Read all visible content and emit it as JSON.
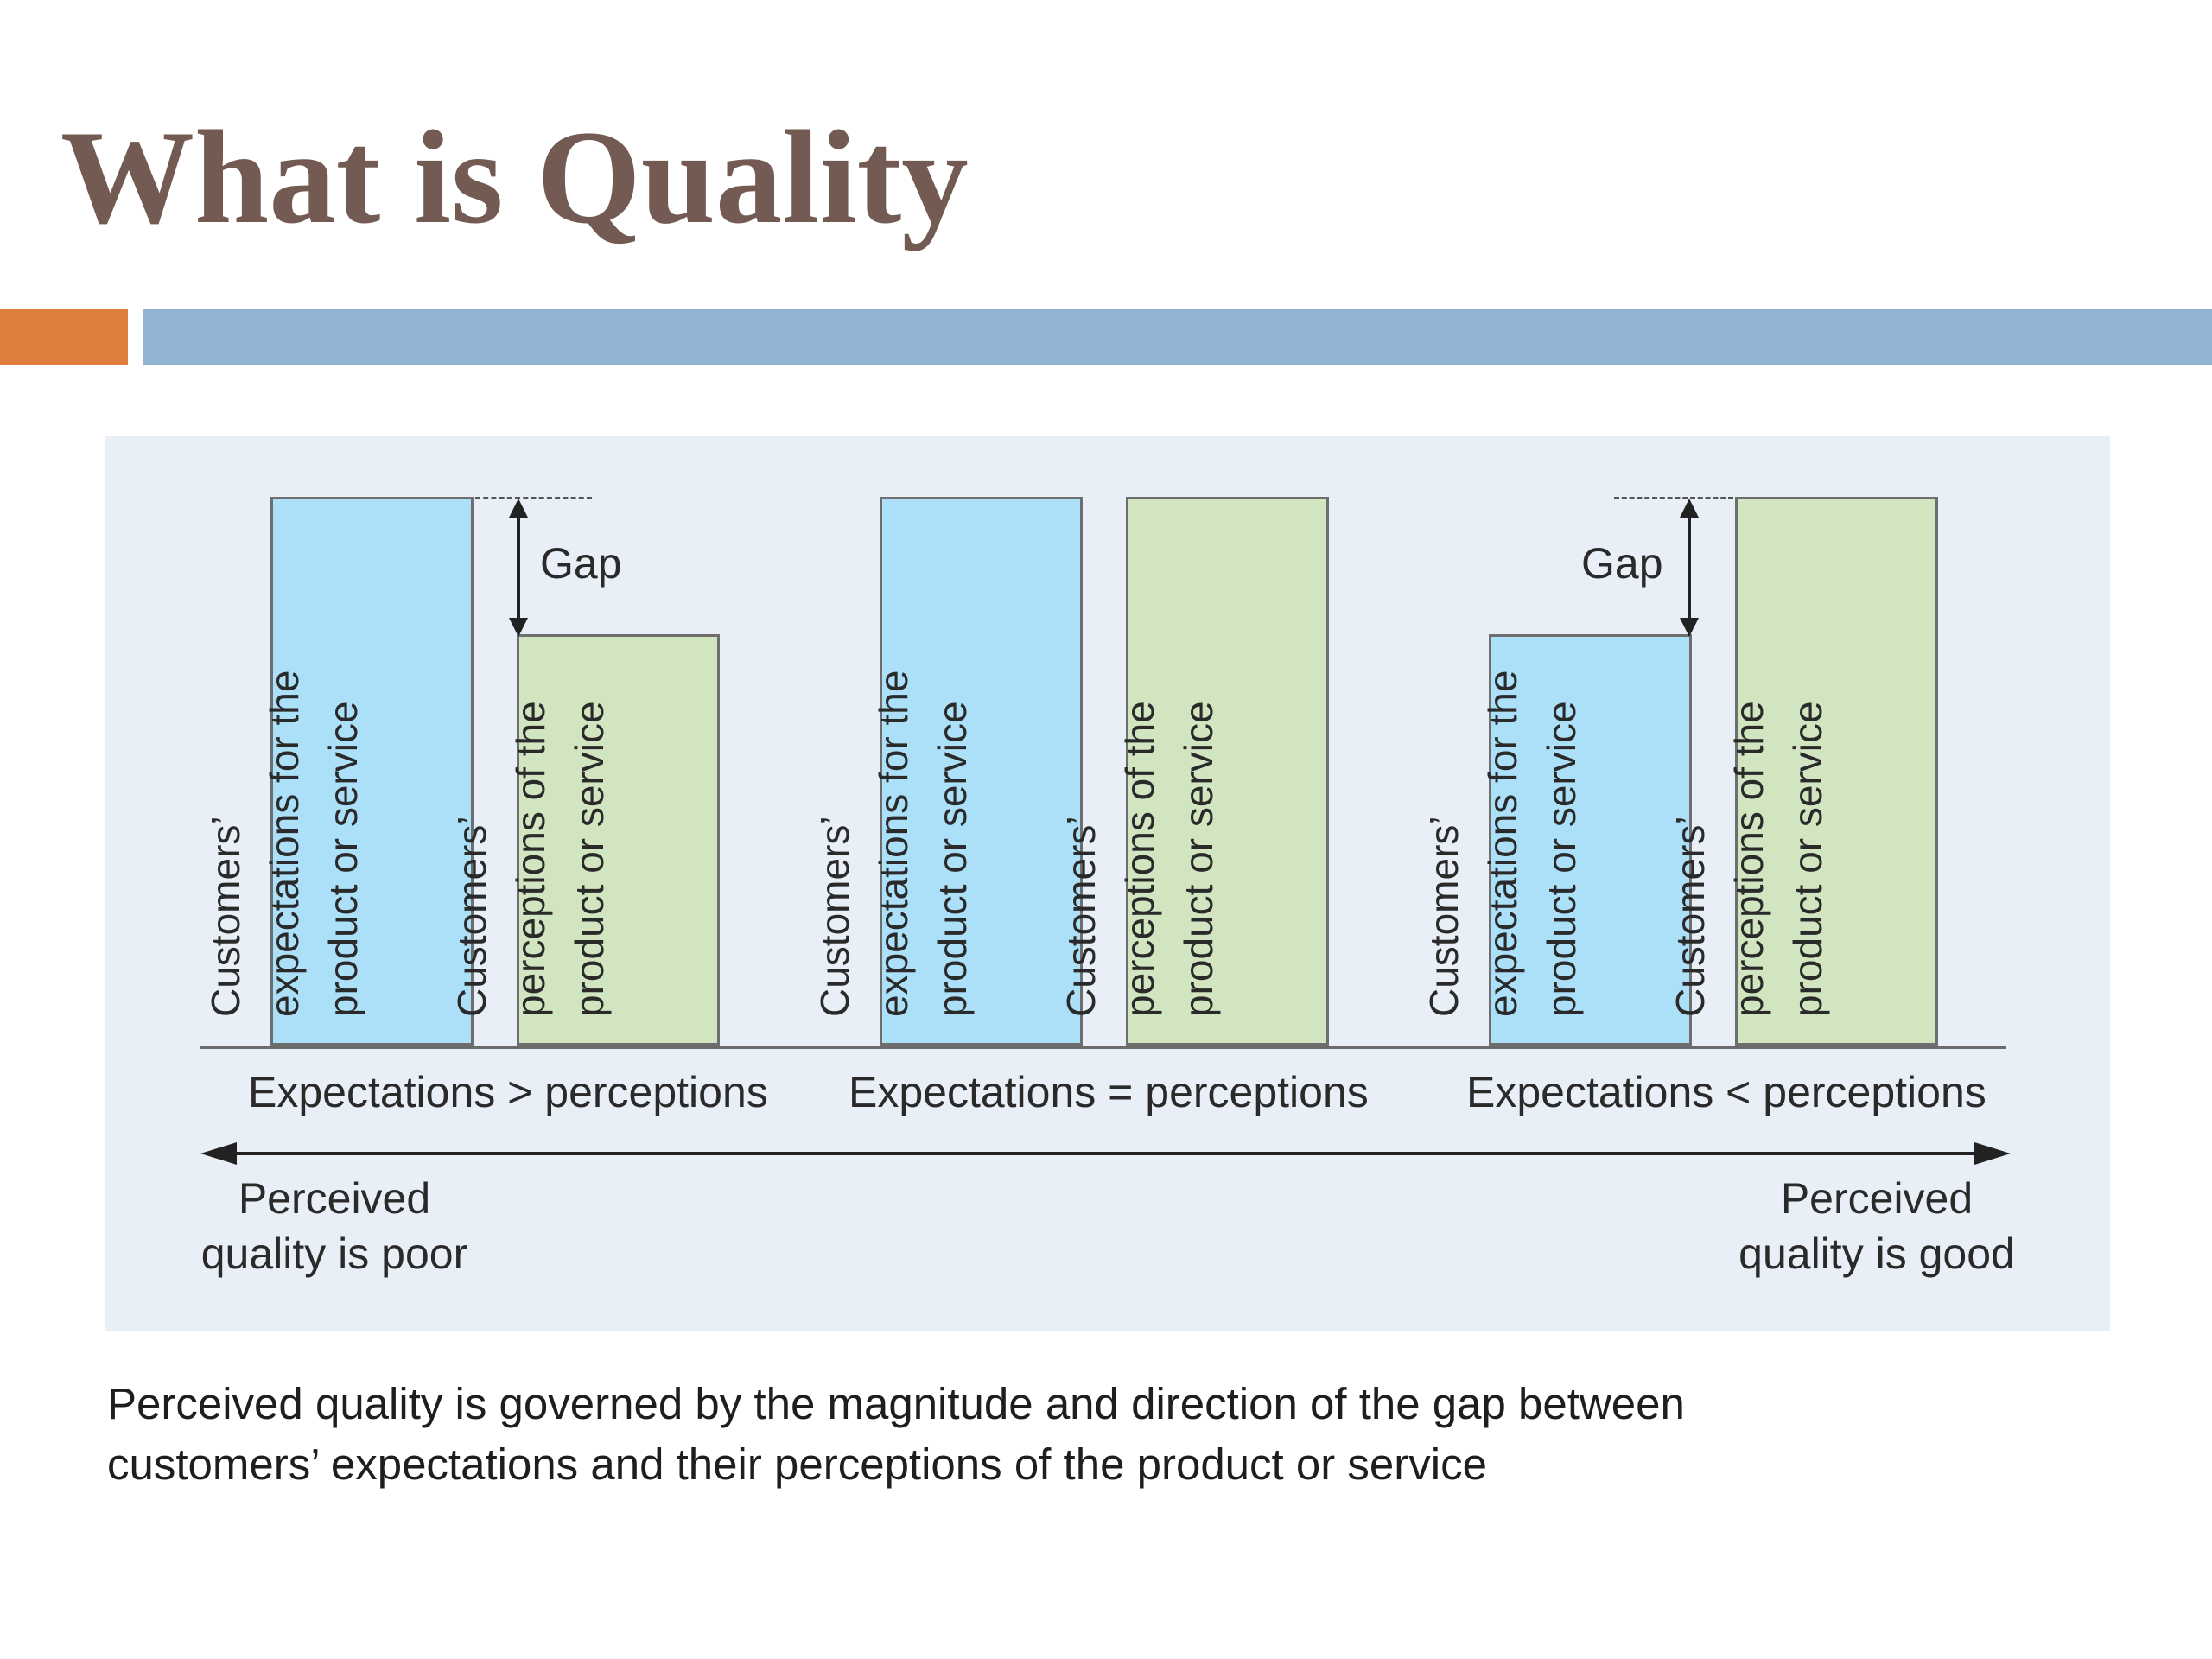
{
  "title": "What is Quality",
  "colors": {
    "title": "#735a52",
    "accent_orange": "#de7f3e",
    "accent_blue": "#93b4d3",
    "panel_bg": "#e8eff6",
    "expectation_fill": "#ace0f8",
    "perception_fill": "#d1e5c0"
  },
  "diagram": {
    "gap_label": "Gap",
    "scenarios": [
      {
        "label": "Expectations > perceptions",
        "bars": [
          {
            "kind": "expectation",
            "lines": [
              "Customers’",
              "expectations for the",
              "product or service"
            ],
            "level": 1.0
          },
          {
            "kind": "perception",
            "lines": [
              "Customers’",
              "perceptions of the",
              "product or service"
            ],
            "level": 0.75
          }
        ]
      },
      {
        "label": "Expectations = perceptions",
        "bars": [
          {
            "kind": "expectation",
            "lines": [
              "Customers’",
              "expectations for the",
              "product or service"
            ],
            "level": 1.0
          },
          {
            "kind": "perception",
            "lines": [
              "Customers’",
              "perceptions of the",
              "product or service"
            ],
            "level": 1.0
          }
        ]
      },
      {
        "label": "Expectations < perceptions",
        "bars": [
          {
            "kind": "expectation",
            "lines": [
              "Customers’",
              "expectations for the",
              "product or service"
            ],
            "level": 0.75
          },
          {
            "kind": "perception",
            "lines": [
              "Customers’",
              "perceptions of the",
              "product or service"
            ],
            "level": 1.0
          }
        ]
      }
    ],
    "left_end": [
      "Perceived",
      "quality is poor"
    ],
    "right_end": [
      "Perceived",
      "quality is good"
    ]
  },
  "caption": {
    "line1": "Perceived quality is governed by the magnitude and direction of the gap between",
    "line2": "customers’ expectations and their perceptions of the product or service"
  }
}
